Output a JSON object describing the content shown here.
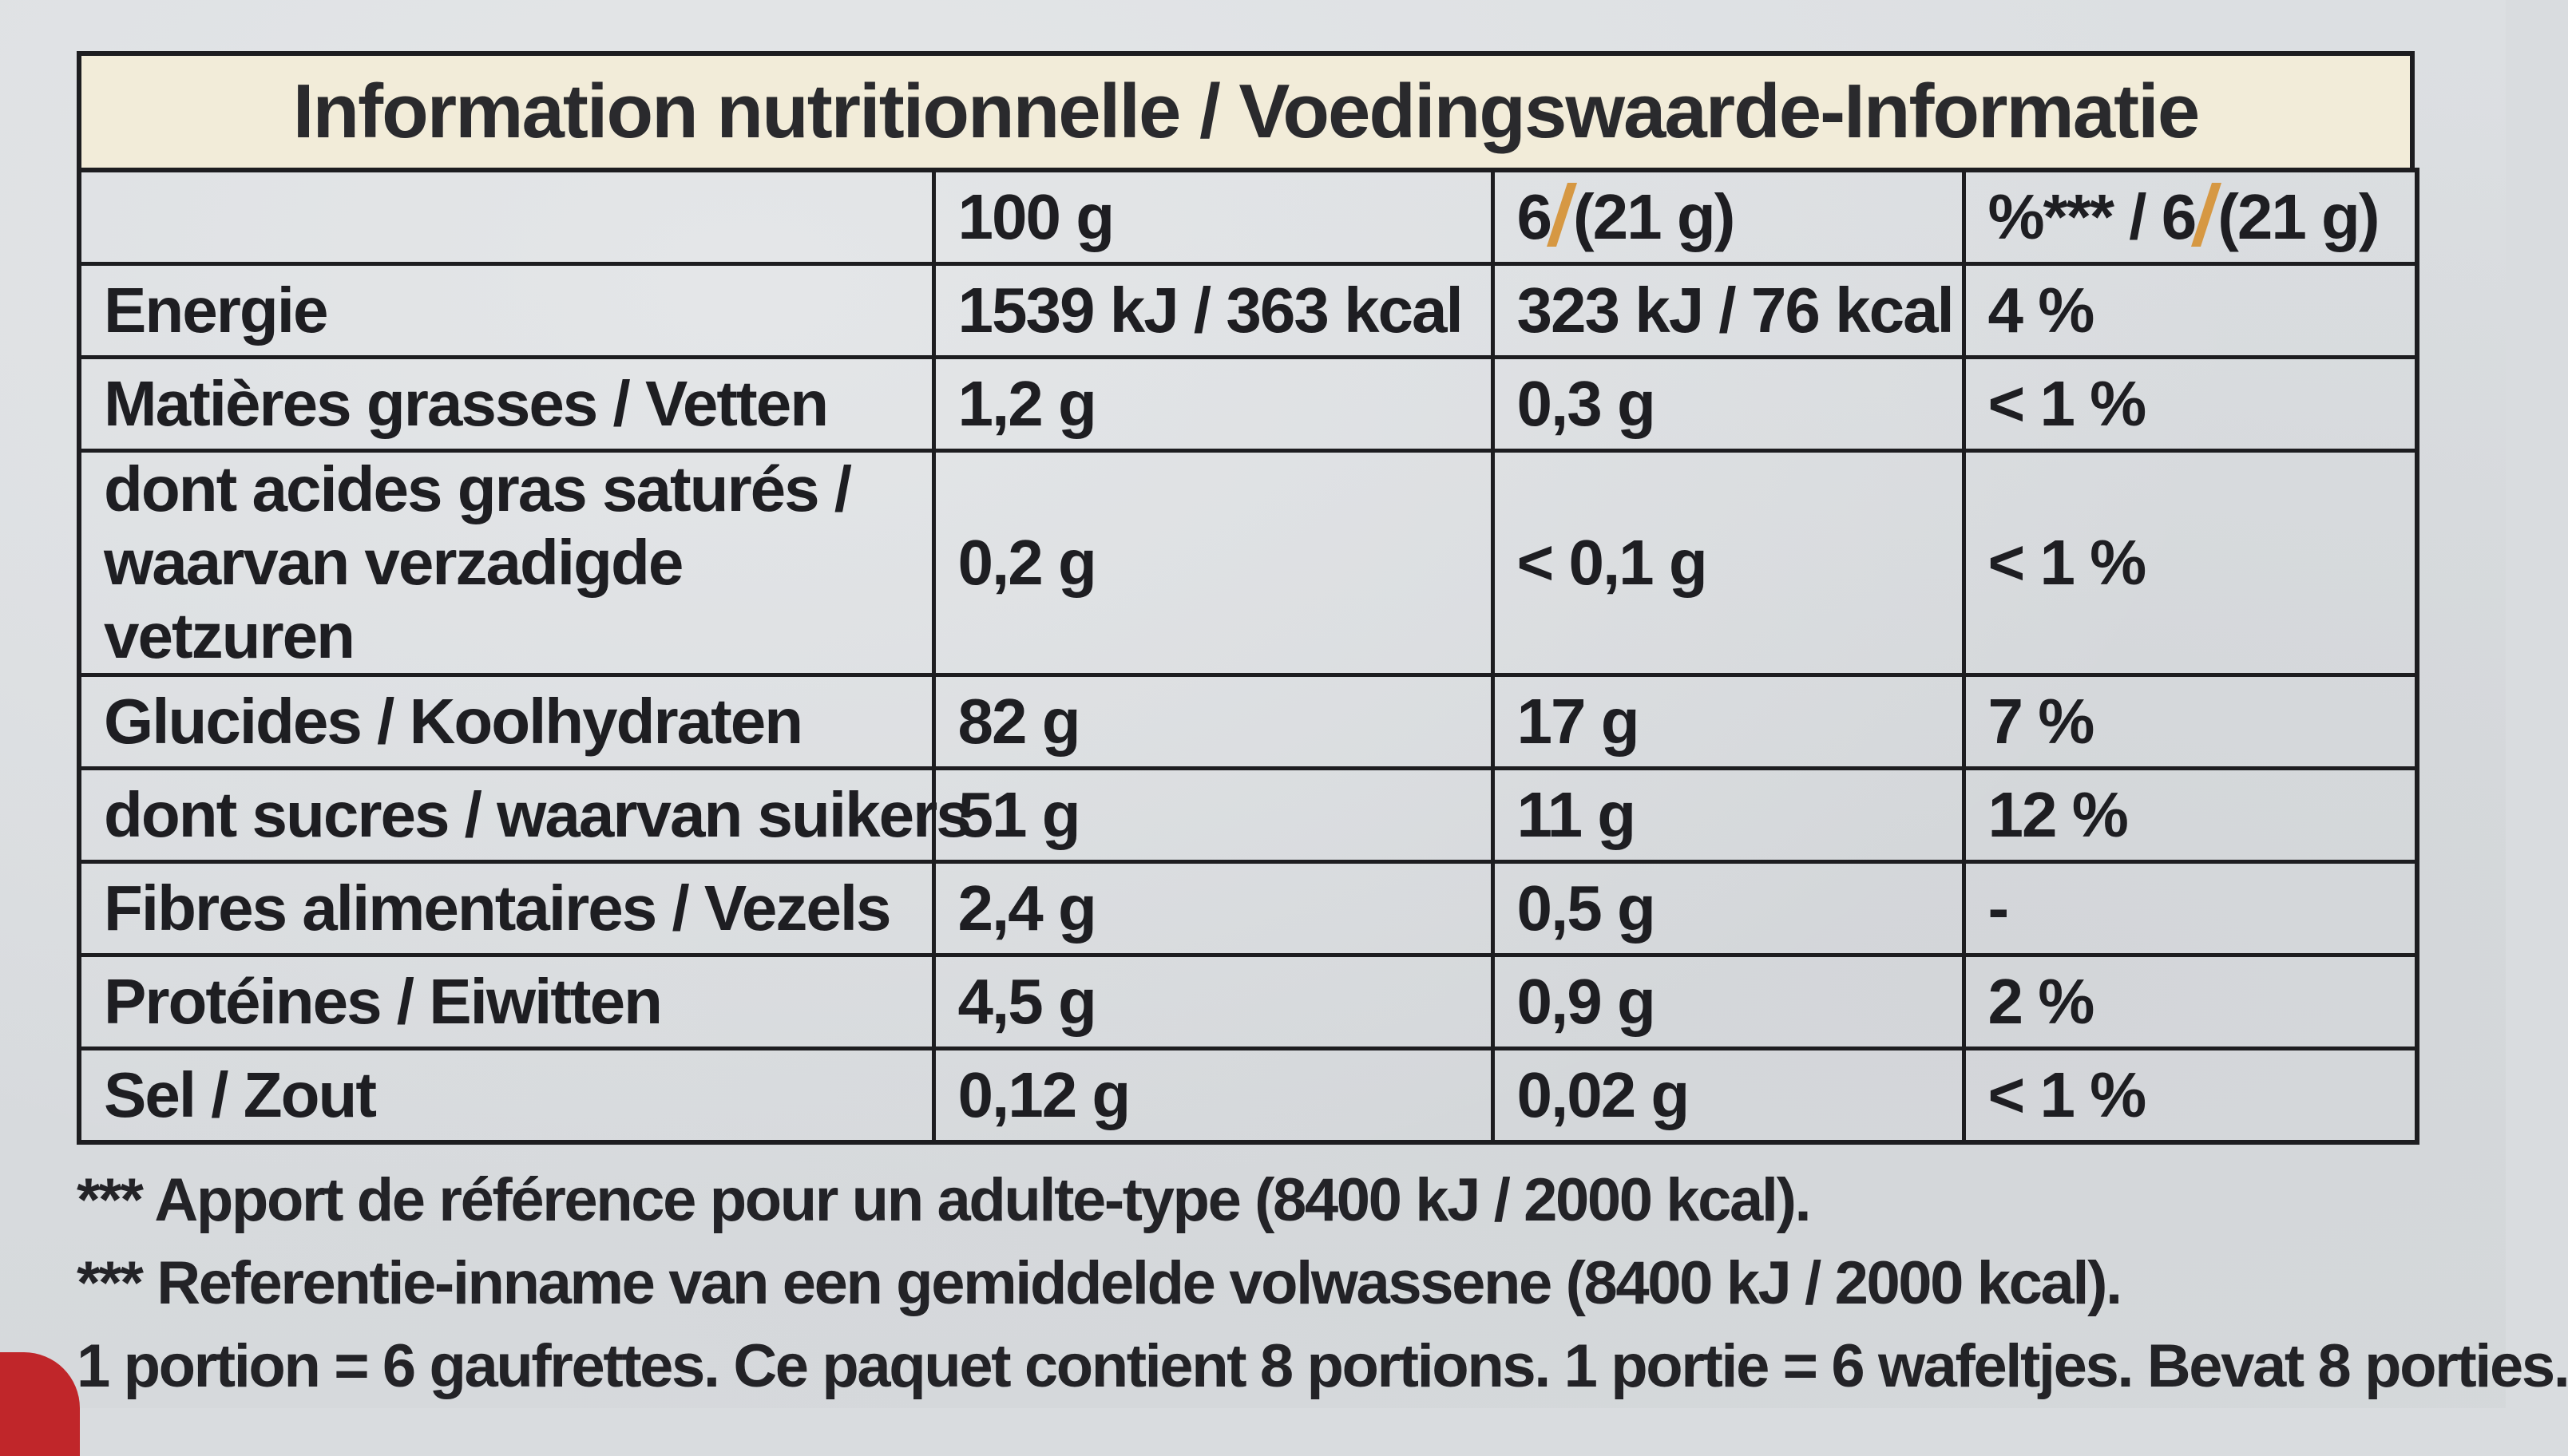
{
  "title": "Information nutritionnelle / Voedingswaarde-Informatie",
  "header": {
    "col1": "",
    "col2": "100 g",
    "col3_prefix": "6",
    "col3_suffix": "(21 g)",
    "col4_prefix": "%*** / 6",
    "col4_suffix": "(21 g)"
  },
  "rows": [
    {
      "name": "Energie",
      "per100": "1539 kJ / 363 kcal",
      "perPortion": "323 kJ / 76 kcal",
      "ri": "4 %"
    },
    {
      "name": "Matières grasses / Vetten",
      "per100": "1,2 g",
      "perPortion": "0,3 g",
      "ri": "< 1 %"
    },
    {
      "name_line1": "dont acides gras saturés /",
      "name_line2": "waarvan verzadigde vetzuren",
      "per100": "0,2 g",
      "perPortion": "< 0,1 g",
      "ri": "< 1 %"
    },
    {
      "name": "Glucides / Koolhydraten",
      "per100": "82 g",
      "perPortion": "17 g",
      "ri": "7 %"
    },
    {
      "name": "dont sucres / waarvan suikers",
      "per100": "51 g",
      "perPortion": "11 g",
      "ri": "12 %"
    },
    {
      "name": "Fibres alimentaires / Vezels",
      "per100": "2,4 g",
      "perPortion": "0,5 g",
      "ri": "-"
    },
    {
      "name": "Protéines / Eiwitten",
      "per100": "4,5 g",
      "perPortion": "0,9 g",
      "ri": "2 %"
    },
    {
      "name": "Sel / Zout",
      "per100": "0,12 g",
      "perPortion": "0,02 g",
      "ri": "< 1 %"
    }
  ],
  "footnotes": [
    "*** Apport de référence pour un adulte-type (8400 kJ / 2000 kcal).",
    "*** Referentie-inname van een gemiddelde volwassene (8400 kJ / 2000 kcal).",
    "1 portion = 6 gaufrettes. Ce paquet contient 8 portions. 1 portie = 6 wafeltjes. Bevat 8 porties."
  ],
  "colors": {
    "title_background": "#f2ecd9",
    "slash_accent": "#d69843",
    "lines": "#1d1d20",
    "background": "#d9dcdf",
    "corner_red": "#c0262a"
  }
}
